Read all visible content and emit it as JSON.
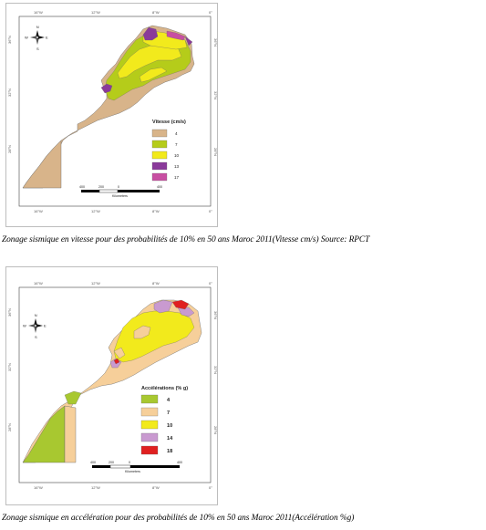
{
  "maps": [
    {
      "legend_title": "Vitesse (cm/s)",
      "legend": [
        {
          "label": "4",
          "color": "#d8b48a"
        },
        {
          "label": "7",
          "color": "#b5cc1a"
        },
        {
          "label": "10",
          "color": "#f2ea1c"
        },
        {
          "label": "13",
          "color": "#8a3a9a"
        },
        {
          "label": "17",
          "color": "#c84fa2"
        }
      ],
      "scale": {
        "ticks": [
          "400",
          "200",
          "0",
          "400"
        ],
        "unit": "Kilometers"
      },
      "lon_ticks": [
        "16°W",
        "12°W",
        "8°W",
        "4°W",
        "0°"
      ],
      "lat_ticks": [
        "36°N",
        "32°N",
        "28°N",
        "24°N"
      ],
      "compass": {
        "n": "N",
        "s": "S",
        "e": "E",
        "w": "W"
      },
      "caption": "Zonage sismique en vitesse pour des probabilités de 10% en 50 ans Maroc 2011(Vitesse cm/s) Source: RPCT"
    },
    {
      "legend_title": "Accélérations (% g)",
      "legend": [
        {
          "label": "4",
          "color": "#a8c830"
        },
        {
          "label": "7",
          "color": "#f6cf9a"
        },
        {
          "label": "10",
          "color": "#f2ea1c"
        },
        {
          "label": "14",
          "color": "#c99ad0"
        },
        {
          "label": "18",
          "color": "#e02020"
        }
      ],
      "scale": {
        "ticks": [
          "400",
          "200",
          "0",
          "400"
        ],
        "unit": "Kilometers"
      },
      "lon_ticks": [
        "16°W",
        "12°W",
        "8°W",
        "4°W",
        "0°"
      ],
      "lat_ticks": [
        "36°N",
        "32°N",
        "28°N",
        "24°N"
      ],
      "compass": {
        "n": "N",
        "s": "S",
        "e": "E",
        "w": "W"
      },
      "caption": "Zonage sismique en accélération pour des probabilités de 10% en 50 ans Maroc 2011(Accélération %g)"
    }
  ]
}
